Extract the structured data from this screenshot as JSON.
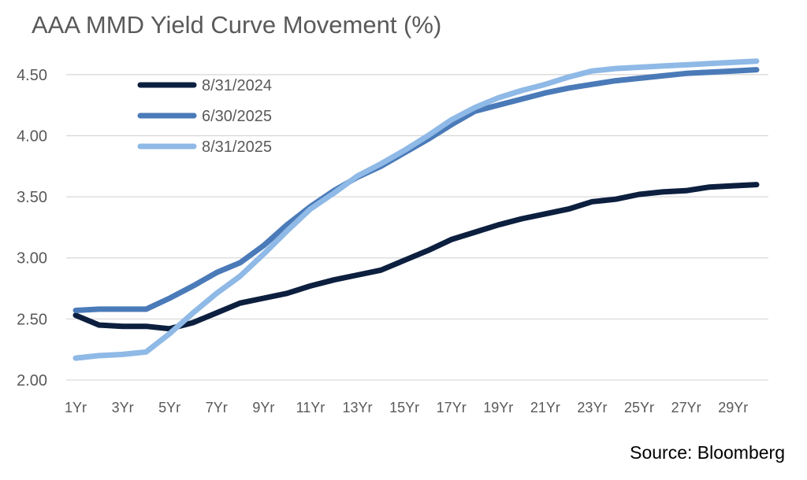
{
  "chart_data": {
    "type": "line",
    "title": "AAA MMD Yield Curve Movement (%)",
    "xlabel": "",
    "ylabel": "",
    "ylim": [
      2.0,
      4.75
    ],
    "yticks": [
      "2.00",
      "2.50",
      "3.00",
      "3.50",
      "4.00",
      "4.50"
    ],
    "categories": [
      "1Yr",
      "2Yr",
      "3Yr",
      "4Yr",
      "5Yr",
      "6Yr",
      "7Yr",
      "8Yr",
      "9Yr",
      "10Yr",
      "11Yr",
      "12Yr",
      "13Yr",
      "14Yr",
      "15Yr",
      "16Yr",
      "17Yr",
      "18Yr",
      "19Yr",
      "20Yr",
      "21Yr",
      "22Yr",
      "23Yr",
      "24Yr",
      "25Yr",
      "26Yr",
      "27Yr",
      "28Yr",
      "29Yr",
      "30Yr"
    ],
    "xtick_labels": [
      "1Yr",
      "3Yr",
      "5Yr",
      "7Yr",
      "9Yr",
      "11Yr",
      "13Yr",
      "15Yr",
      "17Yr",
      "19Yr",
      "21Yr",
      "23Yr",
      "25Yr",
      "27Yr",
      "29Yr"
    ],
    "grid": true,
    "legend": "top-left",
    "series": [
      {
        "name": "8/31/2024",
        "color": "#0c1f3f",
        "values": [
          2.53,
          2.45,
          2.44,
          2.44,
          2.42,
          2.47,
          2.55,
          2.63,
          2.67,
          2.71,
          2.77,
          2.82,
          2.86,
          2.9,
          2.98,
          3.06,
          3.15,
          3.21,
          3.27,
          3.32,
          3.36,
          3.4,
          3.46,
          3.48,
          3.52,
          3.54,
          3.55,
          3.58,
          3.59,
          3.6
        ]
      },
      {
        "name": "6/30/2025",
        "color": "#4a7ab8",
        "values": [
          2.57,
          2.58,
          2.58,
          2.58,
          2.67,
          2.77,
          2.88,
          2.96,
          3.1,
          3.27,
          3.42,
          3.55,
          3.66,
          3.75,
          3.86,
          3.97,
          4.09,
          4.2,
          4.25,
          4.3,
          4.35,
          4.39,
          4.42,
          4.45,
          4.47,
          4.49,
          4.51,
          4.52,
          4.53,
          4.54
        ]
      },
      {
        "name": "8/31/2025",
        "color": "#8fb9e6",
        "values": [
          2.18,
          2.2,
          2.21,
          2.23,
          2.38,
          2.55,
          2.71,
          2.85,
          3.03,
          3.22,
          3.4,
          3.53,
          3.67,
          3.77,
          3.88,
          4.0,
          4.13,
          4.23,
          4.31,
          4.37,
          4.42,
          4.48,
          4.53,
          4.55,
          4.56,
          4.57,
          4.58,
          4.59,
          4.6,
          4.61
        ]
      }
    ]
  },
  "source": "Source: Bloomberg"
}
